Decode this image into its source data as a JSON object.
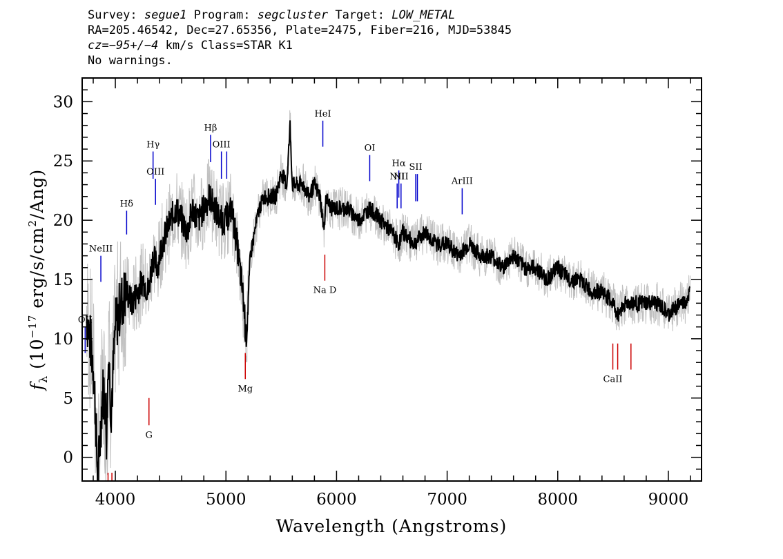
{
  "header": {
    "line1": {
      "survey_label": "Survey:",
      "survey": "segue1",
      "program_label": "Program:",
      "program": "segcluster",
      "target_label": "Target:",
      "target": "LOW_METAL"
    },
    "line2": "RA=205.46542, Dec=27.65356, Plate=2475, Fiber=216, MJD=53845",
    "line3": {
      "cz_label": "cz",
      "cz_value": "=−95+/−4",
      "cz_unit": "km/s",
      "class": "Class=STAR K1"
    },
    "line4": "No warnings."
  },
  "colors": {
    "flux": "#000000",
    "flux_error": "#c0c0c0",
    "emission": "#0000cc",
    "absorption": "#cc0000"
  },
  "chart_data": {
    "type": "line",
    "xlabel": "Wavelength (Angstroms)",
    "ylabel_main": "f",
    "ylabel_sub": "λ",
    "ylabel_rest": " (10",
    "ylabel_exp": "−17",
    "ylabel_tail": " erg/s/cm",
    "ylabel_exp2": "2",
    "ylabel_end": "/Ang)",
    "xlim": [
      3700,
      9300
    ],
    "ylim": [
      -2,
      32
    ],
    "x_ticks": [
      4000,
      5000,
      6000,
      7000,
      8000,
      9000
    ],
    "y_ticks": [
      0,
      5,
      10,
      15,
      20,
      25,
      30
    ],
    "series": [
      {
        "x": [
          3740,
          3800,
          3820,
          3840,
          3860,
          3880,
          3900,
          3920,
          3940,
          3960,
          3980,
          4000,
          4050,
          4100,
          4150,
          4200,
          4250,
          4300,
          4340,
          4380,
          4420,
          4460,
          4500,
          4550,
          4600,
          4650,
          4700,
          4750,
          4800,
          4850,
          4900,
          4950,
          5000,
          5050,
          5100,
          5150,
          5170,
          5180,
          5190,
          5220,
          5260,
          5300,
          5350,
          5400,
          5450,
          5500,
          5550,
          5580,
          5600,
          5650,
          5700,
          5750,
          5800,
          5850,
          5890,
          5900,
          5950,
          6000,
          6100,
          6200,
          6300,
          6400,
          6500,
          6563,
          6600,
          6700,
          6800,
          6900,
          7000,
          7100,
          7200,
          7300,
          7400,
          7500,
          7600,
          7700,
          7800,
          7900,
          8000,
          8100,
          8200,
          8300,
          8400,
          8498,
          8542,
          8600,
          8662,
          8700,
          8800,
          8900,
          9000,
          9100,
          9150,
          9200
        ],
        "y": [
          12,
          8,
          4,
          -2,
          1,
          5,
          6,
          2,
          9,
          4,
          7,
          11,
          13,
          14,
          13,
          14,
          15,
          14,
          17,
          16,
          18,
          19,
          20,
          21,
          20,
          19,
          21,
          20,
          21,
          22,
          21,
          20,
          20,
          21,
          18,
          14,
          12,
          10,
          11,
          17,
          19,
          21,
          22,
          22,
          22,
          24,
          23,
          28,
          23,
          23,
          23,
          22,
          23,
          22,
          19,
          22,
          21,
          21,
          21,
          20,
          21,
          20,
          19,
          18,
          19,
          18,
          19,
          18,
          18,
          17,
          18,
          17,
          17,
          16,
          17,
          16,
          16,
          15,
          16,
          15,
          15,
          14,
          14,
          13,
          12,
          13,
          13,
          13,
          13,
          13,
          12,
          13,
          13,
          14
        ]
      }
    ],
    "emission_lines": [
      {
        "label": "OII",
        "wavelength": 3727,
        "y_top": 11,
        "y_bottom": 8.8
      },
      {
        "label": "NeIII",
        "wavelength": 3869,
        "y_top": 17,
        "y_bottom": 14.8
      },
      {
        "label": "Hδ",
        "wavelength": 4102,
        "y_top": 20.8,
        "y_bottom": 18.8
      },
      {
        "label": "Hγ",
        "wavelength": 4341,
        "y_top": 25.8,
        "y_bottom": 23.5
      },
      {
        "label": "OIII",
        "wavelength": 4363,
        "y_top": 23.5,
        "y_bottom": 21.3
      },
      {
        "label": "Hβ",
        "wavelength": 4861,
        "y_top": 27.2,
        "y_bottom": 24.9
      },
      {
        "label": "OIII",
        "wavelength": 4959,
        "y_top": 25.8,
        "y_bottom": 23.5
      },
      {
        "label": "",
        "wavelength": 5007,
        "y_top": 25.8,
        "y_bottom": 23.5
      },
      {
        "label": "HeI",
        "wavelength": 5876,
        "y_top": 28.4,
        "y_bottom": 26.2
      },
      {
        "label": "OI",
        "wavelength": 6300,
        "y_top": 25.5,
        "y_bottom": 23.3
      },
      {
        "label": "NII",
        "wavelength": 6548,
        "y_top": 23.1,
        "y_bottom": 21
      },
      {
        "label": "Hα",
        "wavelength": 6563,
        "y_top": 24.2,
        "y_bottom": 21.9
      },
      {
        "label": "NII",
        "wavelength": 6583,
        "y_top": 23.1,
        "y_bottom": 21
      },
      {
        "label": "SII",
        "wavelength": 6716,
        "y_top": 23.9,
        "y_bottom": 21.6
      },
      {
        "label": "",
        "wavelength": 6731,
        "y_top": 23.9,
        "y_bottom": 21.6
      },
      {
        "label": "ArIII",
        "wavelength": 7136,
        "y_top": 22.7,
        "y_bottom": 20.5
      }
    ],
    "absorption_lines": [
      {
        "label": "",
        "wavelength": 3934,
        "y_top": -1.3,
        "y_bottom": -3
      },
      {
        "label": "",
        "wavelength": 3969,
        "y_top": -1.3,
        "y_bottom": -3
      },
      {
        "label": "G",
        "wavelength": 4304,
        "y_top": 5,
        "y_bottom": 2.7
      },
      {
        "label": "Mg",
        "wavelength": 5175,
        "y_top": 8.8,
        "y_bottom": 6.6
      },
      {
        "label": "Na D",
        "wavelength": 5894,
        "y_top": 17.1,
        "y_bottom": 14.9
      },
      {
        "label": "CaII",
        "wavelength": 8498,
        "y_top": 9.6,
        "y_bottom": 7.4
      },
      {
        "label": "",
        "wavelength": 8542,
        "y_top": 9.6,
        "y_bottom": 7.4
      },
      {
        "label": "",
        "wavelength": 8662,
        "y_top": 9.6,
        "y_bottom": 7.4
      }
    ]
  }
}
